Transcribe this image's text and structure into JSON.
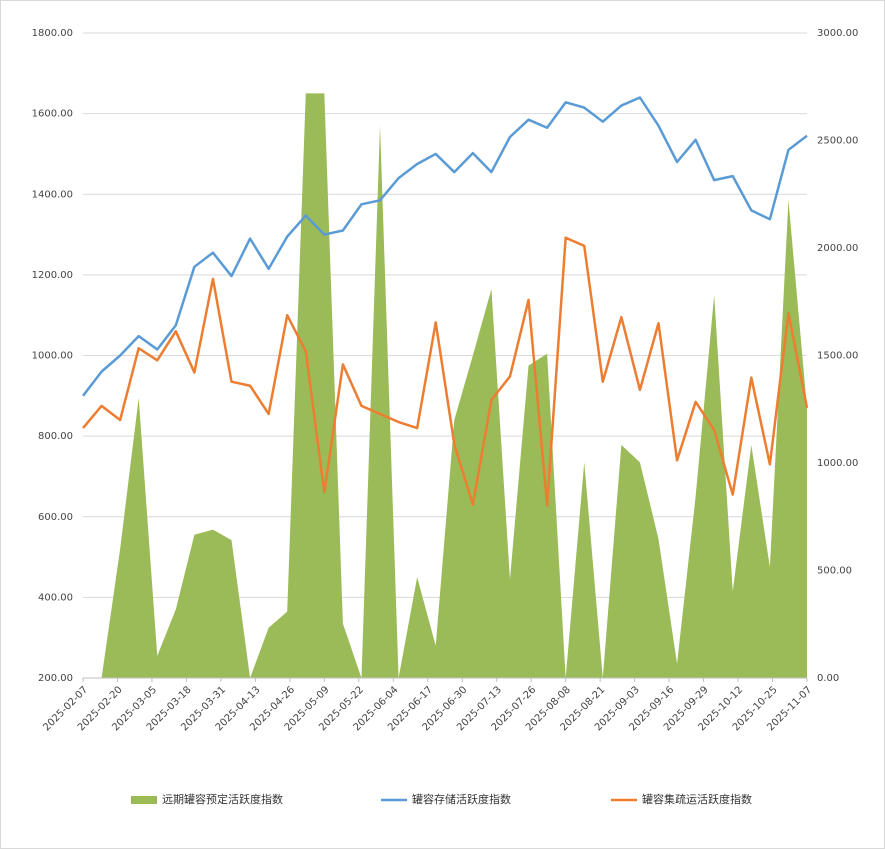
{
  "chart_data": {
    "type": "combo",
    "x": [
      "2025-02-07",
      "2025-02-14",
      "2025-02-21",
      "2025-02-28",
      "2025-03-07",
      "2025-03-14",
      "2025-03-21",
      "2025-03-28",
      "2025-04-04",
      "2025-04-11",
      "2025-04-18",
      "2025-04-25",
      "2025-05-02",
      "2025-05-09",
      "2025-05-16",
      "2025-05-23",
      "2025-05-30",
      "2025-06-06",
      "2025-06-13",
      "2025-06-20",
      "2025-06-27",
      "2025-07-04",
      "2025-07-11",
      "2025-07-18",
      "2025-07-25",
      "2025-08-01",
      "2025-08-08",
      "2025-08-15",
      "2025-08-22",
      "2025-08-29",
      "2025-09-05",
      "2025-09-12",
      "2025-09-19",
      "2025-09-26",
      "2025-10-03",
      "2025-10-10",
      "2025-10-17",
      "2025-10-24",
      "2025-10-31",
      "2025-11-07"
    ],
    "xticks": [
      "2025-02-07",
      "2025-02-20",
      "2025-03-05",
      "2025-03-18",
      "2025-03-31",
      "2025-04-13",
      "2025-04-26",
      "2025-05-09",
      "2025-05-22",
      "2025-06-04",
      "2025-06-17",
      "2025-06-30",
      "2025-07-13",
      "2025-07-26",
      "2025-08-08",
      "2025-08-21",
      "2025-09-03",
      "2025-09-16",
      "2025-09-29",
      "2025-10-12",
      "2025-10-25",
      "2025-11-07"
    ],
    "ylim": [
      200,
      1800
    ],
    "yticks": [
      {
        "value": 200,
        "label": "200.00"
      },
      {
        "value": 400,
        "label": "400.00"
      },
      {
        "value": 600,
        "label": "600.00"
      },
      {
        "value": 800,
        "label": "800.00"
      },
      {
        "value": 1000,
        "label": "1000.00"
      },
      {
        "value": 1200,
        "label": "1200.00"
      },
      {
        "value": 1400,
        "label": "1400.00"
      },
      {
        "value": 1600,
        "label": "1600.00"
      },
      {
        "value": 1800,
        "label": "1800.00"
      }
    ],
    "y2lim": [
      0,
      3000
    ],
    "y2ticks": [
      {
        "value": 0,
        "label": "0.00"
      },
      {
        "value": 500,
        "label": "500.00"
      },
      {
        "value": 1000,
        "label": "1000.00"
      },
      {
        "value": 1500,
        "label": "1500.00"
      },
      {
        "value": 2000,
        "label": "2000.00"
      },
      {
        "value": 2500,
        "label": "2500.00"
      },
      {
        "value": 3000,
        "label": "3000.00"
      }
    ],
    "grid": true,
    "series": [
      {
        "name": "远期罐容预定活跃度指数",
        "kind": "area",
        "axis": "y2",
        "color": "#9bbb59",
        "values": [
          0,
          0,
          600,
          1303,
          103,
          319,
          666,
          690,
          641,
          0,
          234,
          309,
          2719,
          2719,
          253,
          0,
          2569,
          0,
          469,
          150,
          1200,
          1500,
          1809,
          459,
          1453,
          1509,
          0,
          1003,
          0,
          1084,
          1003,
          647,
          66,
          844,
          1781,
          403,
          1084,
          516,
          2222,
          1256
        ]
      },
      {
        "name": "罐容存储活跃度指数",
        "kind": "line",
        "color": "#5b9bd5",
        "values": [
          900,
          960,
          1000,
          1048,
          1015,
          1075,
          1220,
          1255,
          1197,
          1290,
          1215,
          1295,
          1347,
          1300,
          1310,
          1375,
          1385,
          1440,
          1475,
          1500,
          1455,
          1502,
          1455,
          1542,
          1585,
          1565,
          1628,
          1615,
          1580,
          1620,
          1640,
          1570,
          1480,
          1535,
          1435,
          1445,
          1360,
          1338,
          1510,
          1545
        ]
      },
      {
        "name": "罐容集疏运活跃度指数",
        "kind": "line",
        "color": "#ed7d31",
        "values": [
          820,
          875,
          840,
          1018,
          988,
          1060,
          958,
          1190,
          935,
          925,
          855,
          1100,
          1010,
          660,
          978,
          875,
          855,
          835,
          820,
          1082,
          780,
          630,
          890,
          948,
          1138,
          628,
          1292,
          1272,
          935,
          1095,
          915,
          1080,
          740,
          885,
          815,
          655,
          945,
          730,
          1105,
          870
        ]
      }
    ]
  }
}
